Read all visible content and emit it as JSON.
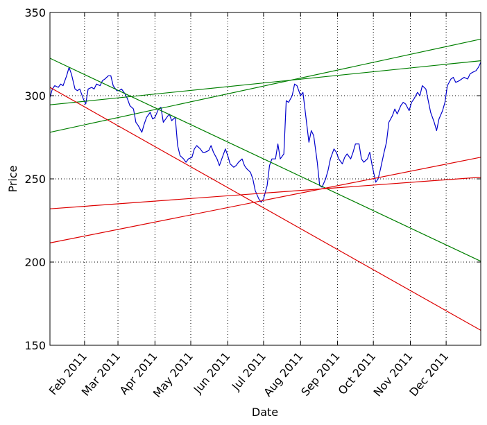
{
  "chart_data": {
    "type": "line",
    "xlabel": "Date",
    "ylabel": "Price",
    "ylim": [
      150,
      350
    ],
    "xlim": [
      "2011-01-03",
      "2011-12-30"
    ],
    "grid": true,
    "y_ticks": [
      150,
      200,
      250,
      300,
      350
    ],
    "x_ticks": [
      {
        "date": "2011-02-01",
        "label": "Feb 2011"
      },
      {
        "date": "2011-03-01",
        "label": "Mar 2011"
      },
      {
        "date": "2011-04-01",
        "label": "Apr 2011"
      },
      {
        "date": "2011-05-01",
        "label": "May 2011"
      },
      {
        "date": "2011-06-01",
        "label": "Jun 2011"
      },
      {
        "date": "2011-07-01",
        "label": "Jul 2011"
      },
      {
        "date": "2011-08-01",
        "label": "Aug 2011"
      },
      {
        "date": "2011-09-01",
        "label": "Sep 2011"
      },
      {
        "date": "2011-10-01",
        "label": "Oct 2011"
      },
      {
        "date": "2011-11-01",
        "label": "Nov 2011"
      },
      {
        "date": "2011-12-01",
        "label": "Dec 2011"
      }
    ],
    "series": [
      {
        "color": "#0000cc",
        "points": [
          [
            "2011-01-03",
            299
          ],
          [
            "2011-01-05",
            304
          ],
          [
            "2011-01-07",
            306
          ],
          [
            "2011-01-10",
            305
          ],
          [
            "2011-01-12",
            307
          ],
          [
            "2011-01-14",
            306
          ],
          [
            "2011-01-17",
            312
          ],
          [
            "2011-01-19",
            317
          ],
          [
            "2011-01-21",
            313
          ],
          [
            "2011-01-24",
            304
          ],
          [
            "2011-01-26",
            303
          ],
          [
            "2011-01-28",
            304
          ],
          [
            "2011-01-31",
            298
          ],
          [
            "2011-02-02",
            295
          ],
          [
            "2011-02-04",
            304
          ],
          [
            "2011-02-07",
            305
          ],
          [
            "2011-02-09",
            304
          ],
          [
            "2011-02-11",
            307
          ],
          [
            "2011-02-14",
            306
          ],
          [
            "2011-02-16",
            309
          ],
          [
            "2011-02-18",
            310
          ],
          [
            "2011-02-21",
            312
          ],
          [
            "2011-02-23",
            312
          ],
          [
            "2011-02-25",
            306
          ],
          [
            "2011-02-28",
            303
          ],
          [
            "2011-03-02",
            303
          ],
          [
            "2011-03-04",
            304
          ],
          [
            "2011-03-07",
            301
          ],
          [
            "2011-03-09",
            298
          ],
          [
            "2011-03-11",
            294
          ],
          [
            "2011-03-14",
            292
          ],
          [
            "2011-03-16",
            284
          ],
          [
            "2011-03-18",
            282
          ],
          [
            "2011-03-21",
            278
          ],
          [
            "2011-03-23",
            283
          ],
          [
            "2011-03-25",
            287
          ],
          [
            "2011-03-28",
            290
          ],
          [
            "2011-03-30",
            286
          ],
          [
            "2011-04-01",
            287
          ],
          [
            "2011-04-04",
            292
          ],
          [
            "2011-04-06",
            293
          ],
          [
            "2011-04-08",
            284
          ],
          [
            "2011-04-11",
            287
          ],
          [
            "2011-04-13",
            289
          ],
          [
            "2011-04-15",
            285
          ],
          [
            "2011-04-18",
            287
          ],
          [
            "2011-04-20",
            270
          ],
          [
            "2011-04-22",
            264
          ],
          [
            "2011-04-25",
            262
          ],
          [
            "2011-04-27",
            260
          ],
          [
            "2011-04-29",
            262
          ],
          [
            "2011-05-02",
            263
          ],
          [
            "2011-05-04",
            268
          ],
          [
            "2011-05-06",
            270
          ],
          [
            "2011-05-09",
            268
          ],
          [
            "2011-05-11",
            266
          ],
          [
            "2011-05-13",
            266
          ],
          [
            "2011-05-16",
            267
          ],
          [
            "2011-05-18",
            270
          ],
          [
            "2011-05-20",
            266
          ],
          [
            "2011-05-23",
            262
          ],
          [
            "2011-05-25",
            258
          ],
          [
            "2011-05-27",
            262
          ],
          [
            "2011-05-30",
            268
          ],
          [
            "2011-06-01",
            264
          ],
          [
            "2011-06-03",
            259
          ],
          [
            "2011-06-06",
            257
          ],
          [
            "2011-06-08",
            258
          ],
          [
            "2011-06-10",
            260
          ],
          [
            "2011-06-13",
            262
          ],
          [
            "2011-06-15",
            258
          ],
          [
            "2011-06-17",
            256
          ],
          [
            "2011-06-20",
            254
          ],
          [
            "2011-06-22",
            250
          ],
          [
            "2011-06-24",
            243
          ],
          [
            "2011-06-27",
            238
          ],
          [
            "2011-06-29",
            236
          ],
          [
            "2011-07-01",
            238
          ],
          [
            "2011-07-04",
            246
          ],
          [
            "2011-07-06",
            258
          ],
          [
            "2011-07-08",
            262
          ],
          [
            "2011-07-11",
            262
          ],
          [
            "2011-07-13",
            271
          ],
          [
            "2011-07-15",
            262
          ],
          [
            "2011-07-18",
            265
          ],
          [
            "2011-07-20",
            297
          ],
          [
            "2011-07-22",
            296
          ],
          [
            "2011-07-25",
            300
          ],
          [
            "2011-07-27",
            307
          ],
          [
            "2011-07-29",
            306
          ],
          [
            "2011-08-01",
            300
          ],
          [
            "2011-08-03",
            302
          ],
          [
            "2011-08-05",
            290
          ],
          [
            "2011-08-08",
            272
          ],
          [
            "2011-08-10",
            279
          ],
          [
            "2011-08-12",
            276
          ],
          [
            "2011-08-15",
            260
          ],
          [
            "2011-08-17",
            246
          ],
          [
            "2011-08-19",
            245
          ],
          [
            "2011-08-22",
            250
          ],
          [
            "2011-08-24",
            255
          ],
          [
            "2011-08-26",
            262
          ],
          [
            "2011-08-29",
            268
          ],
          [
            "2011-08-31",
            266
          ],
          [
            "2011-09-02",
            262
          ],
          [
            "2011-09-05",
            259
          ],
          [
            "2011-09-07",
            263
          ],
          [
            "2011-09-09",
            265
          ],
          [
            "2011-09-12",
            262
          ],
          [
            "2011-09-14",
            266
          ],
          [
            "2011-09-16",
            271
          ],
          [
            "2011-09-19",
            271
          ],
          [
            "2011-09-21",
            262
          ],
          [
            "2011-09-23",
            260
          ],
          [
            "2011-09-26",
            262
          ],
          [
            "2011-09-28",
            266
          ],
          [
            "2011-09-30",
            258
          ],
          [
            "2011-10-03",
            248
          ],
          [
            "2011-10-05",
            250
          ],
          [
            "2011-10-07",
            256
          ],
          [
            "2011-10-10",
            266
          ],
          [
            "2011-10-12",
            272
          ],
          [
            "2011-10-14",
            284
          ],
          [
            "2011-10-17",
            288
          ],
          [
            "2011-10-19",
            292
          ],
          [
            "2011-10-21",
            289
          ],
          [
            "2011-10-24",
            294
          ],
          [
            "2011-10-26",
            296
          ],
          [
            "2011-10-28",
            295
          ],
          [
            "2011-10-31",
            291
          ],
          [
            "2011-11-02",
            296
          ],
          [
            "2011-11-04",
            298
          ],
          [
            "2011-11-07",
            302
          ],
          [
            "2011-11-09",
            300
          ],
          [
            "2011-11-11",
            306
          ],
          [
            "2011-11-14",
            304
          ],
          [
            "2011-11-16",
            297
          ],
          [
            "2011-11-18",
            290
          ],
          [
            "2011-11-21",
            284
          ],
          [
            "2011-11-23",
            279
          ],
          [
            "2011-11-25",
            286
          ],
          [
            "2011-11-28",
            291
          ],
          [
            "2011-11-30",
            296
          ],
          [
            "2011-12-02",
            306
          ],
          [
            "2011-12-05",
            310
          ],
          [
            "2011-12-07",
            311
          ],
          [
            "2011-12-09",
            308
          ],
          [
            "2011-12-12",
            309
          ],
          [
            "2011-12-14",
            310
          ],
          [
            "2011-12-16",
            311
          ],
          [
            "2011-12-19",
            310
          ],
          [
            "2011-12-21",
            313
          ],
          [
            "2011-12-23",
            314
          ],
          [
            "2011-12-26",
            315
          ],
          [
            "2011-12-28",
            317
          ],
          [
            "2011-12-30",
            320
          ]
        ]
      },
      {
        "color": "#007f00",
        "points": [
          [
            "2011-01-03",
            322.5
          ],
          [
            "2011-12-30",
            200.5
          ]
        ]
      },
      {
        "color": "#007f00",
        "points": [
          [
            "2011-01-03",
            294.5
          ],
          [
            "2011-12-30",
            321
          ]
        ]
      },
      {
        "color": "#007f00",
        "points": [
          [
            "2011-01-03",
            278
          ],
          [
            "2011-12-30",
            334
          ]
        ]
      },
      {
        "color": "#dd0000",
        "points": [
          [
            "2011-01-03",
            305
          ],
          [
            "2011-12-30",
            159
          ]
        ]
      },
      {
        "color": "#dd0000",
        "points": [
          [
            "2011-01-03",
            232
          ],
          [
            "2011-12-30",
            251
          ]
        ]
      },
      {
        "color": "#dd0000",
        "points": [
          [
            "2011-01-03",
            211.5
          ],
          [
            "2011-12-30",
            263
          ]
        ]
      }
    ]
  }
}
